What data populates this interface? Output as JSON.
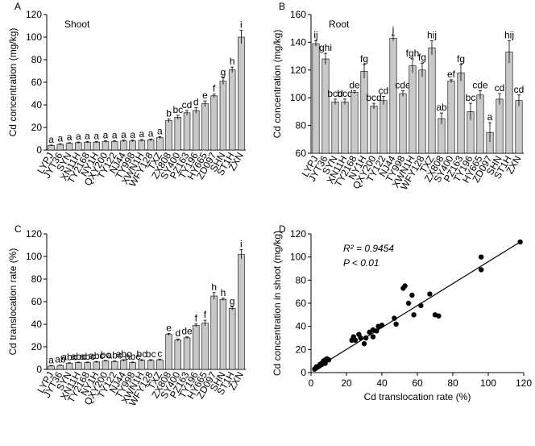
{
  "chart_data": [
    {
      "type": "bar",
      "panel": "A",
      "annotation": "Shoot",
      "ylabel": "Cd concentration (mg/kg)",
      "categories": [
        "LYPJ",
        "JYT36",
        "SYN",
        "XN11H",
        "TY2168",
        "NY1H",
        "QXY200",
        "TY122",
        "NJ44",
        "TY998",
        "XWN1H",
        "WFY128",
        "TXZ",
        "ZX808",
        "SY400",
        "PZ163",
        "TY196",
        "HY665",
        "ZD097",
        "SHN",
        "ST1H",
        "ZXN"
      ],
      "values": [
        4,
        5,
        6,
        6.5,
        7,
        7,
        7.5,
        7.5,
        8,
        8,
        8.5,
        9,
        11,
        26,
        29,
        33,
        35,
        41,
        48,
        61,
        71,
        100
      ],
      "errors": [
        0.4,
        0.5,
        0.5,
        0.6,
        0.6,
        0.5,
        0.6,
        0.6,
        0.7,
        0.7,
        0.8,
        0.8,
        0.9,
        1.5,
        1.8,
        2,
        2.5,
        2.5,
        1.5,
        3,
        2.5,
        6
      ],
      "letters": [
        "a",
        "a",
        "a",
        "a",
        "a",
        "a",
        "a",
        "a",
        "a",
        "a",
        "a",
        "a",
        "a",
        "b",
        "bc",
        "cd",
        "d",
        "e",
        "f",
        "g",
        "h",
        "i"
      ],
      "color": "#c8c8c8",
      "ylim": [
        0,
        120
      ],
      "yticks": [
        0,
        20,
        40,
        60,
        80,
        100,
        120
      ]
    },
    {
      "type": "bar",
      "panel": "B",
      "annotation": "Root",
      "ylabel": "Cd concentration (mg/kg)",
      "categories": [
        "LYPJ",
        "JYT36",
        "SYN",
        "XN11H",
        "TY2168",
        "NY1H",
        "QXY200",
        "TY122",
        "NJ44",
        "TY998",
        "XWN1H",
        "WFY128",
        "TXZ",
        "ZX808",
        "SY400",
        "PZ163",
        "TY196",
        "HY665",
        "ZD097",
        "SHN",
        "ST1H",
        "ZXN"
      ],
      "values": [
        139,
        128,
        97,
        97,
        104,
        119,
        94,
        98,
        143,
        103,
        123,
        120,
        136,
        85,
        112,
        118,
        90,
        102,
        75,
        99,
        133,
        98
      ],
      "errors": [
        2,
        4,
        2,
        2,
        1,
        5,
        2,
        3,
        2,
        2,
        5,
        5,
        5,
        4,
        1,
        6,
        6,
        3,
        7,
        4,
        8,
        4
      ],
      "letters": [
        "ij",
        "ghi",
        "bcd",
        "bcd",
        "de",
        "fg",
        "bcd",
        "cd",
        "j",
        "cde",
        "fgh",
        "fg",
        "hij",
        "ab",
        "ef",
        "fg",
        "bc",
        "cde",
        "a",
        "cd",
        "hij",
        "cd"
      ],
      "color": "#c8c8c8",
      "ylim": [
        60,
        160
      ],
      "yticks": [
        60,
        80,
        100,
        120,
        140,
        160
      ]
    },
    {
      "type": "bar",
      "panel": "C",
      "ylabel": "Cd translocation rate (%)",
      "categories": [
        "LYPJ",
        "JYT36",
        "SYN",
        "XN11H",
        "TY2168",
        "NY1H",
        "QXY200",
        "TY122",
        "NJ44",
        "TY998",
        "XWN1H",
        "WFY128",
        "TXZ",
        "ZX808",
        "SY400",
        "PZ163",
        "TY196",
        "HY665",
        "ZD097",
        "SHN",
        "ST1H",
        "ZXN"
      ],
      "values": [
        3,
        3.5,
        5.5,
        6,
        6,
        6.5,
        7.5,
        7,
        8,
        6,
        8,
        8,
        8.5,
        31,
        26,
        28,
        39,
        41,
        65,
        62,
        54,
        102
      ],
      "errors": [
        0.3,
        0.3,
        0.4,
        0.4,
        0.5,
        0.5,
        0.5,
        0.5,
        0.6,
        0.5,
        0.6,
        0.6,
        0.6,
        0.8,
        1,
        0.8,
        1.2,
        2.5,
        3,
        1,
        1.5,
        4
      ],
      "letters": [
        "a",
        "ab",
        "abc",
        "abc",
        "abc",
        "abc",
        "bc",
        "abc",
        "abc",
        "abc",
        "bc",
        "bc",
        "c",
        "e",
        "d",
        "de",
        "f",
        "f",
        "h",
        "h",
        "g",
        "i"
      ],
      "color": "#c8c8c8",
      "ylim": [
        0,
        120
      ],
      "yticks": [
        0,
        20,
        40,
        60,
        80,
        100,
        120
      ]
    },
    {
      "type": "scatter",
      "panel": "D",
      "xlabel": "Cd translocation rate (%)",
      "ylabel": "Cd concentration in shoot (mg/kg)",
      "annotations": [
        "R² = 0.9454",
        "P < 0.01"
      ],
      "x": [
        2,
        3,
        3,
        4,
        5,
        5,
        6,
        6,
        7,
        7,
        8,
        8,
        9,
        10,
        23,
        24,
        25,
        27,
        28,
        30,
        31,
        33,
        35,
        35,
        37,
        38,
        40,
        47,
        48,
        52,
        53,
        55,
        57,
        58,
        62,
        67,
        70,
        72,
        96,
        96,
        118
      ],
      "y": [
        3,
        5,
        4,
        5,
        6,
        7,
        7,
        8,
        9,
        10,
        11,
        8,
        12,
        11,
        28,
        31,
        28,
        33,
        30,
        25,
        30,
        35,
        37,
        31,
        36,
        40,
        41,
        47,
        42,
        73,
        75,
        60,
        67,
        50,
        58,
        68,
        50,
        49,
        100,
        89,
        113
      ],
      "trendline": {
        "x": [
          2,
          118
        ],
        "y": [
          3,
          113
        ]
      },
      "color": "#000000",
      "xlim": [
        0,
        120
      ],
      "xticks": [
        0,
        20,
        40,
        60,
        80,
        100,
        120
      ],
      "ylim": [
        0,
        120
      ],
      "yticks": [
        0,
        20,
        40,
        60,
        80,
        100,
        120
      ]
    }
  ]
}
